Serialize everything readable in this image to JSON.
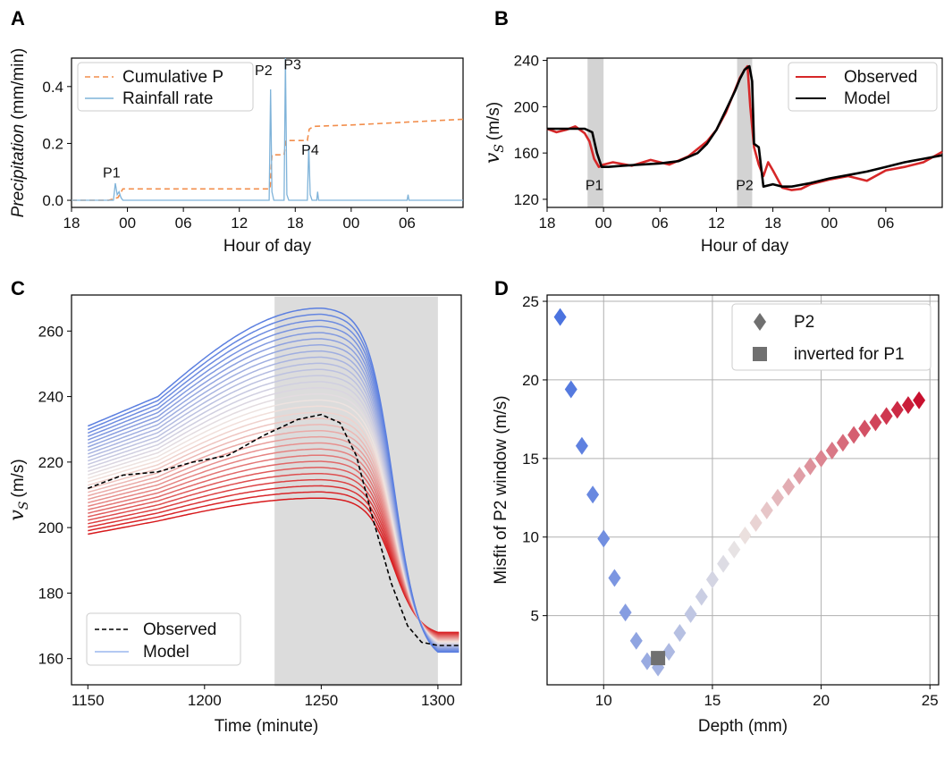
{
  "chart_data": [
    {
      "panel": "A",
      "type": "line",
      "xlabel": "Hour of day",
      "ylabel": "Precipitation (mm/min)",
      "ylabel_italic_part": "Precipitation",
      "ylabel_rest": "(mm/min)",
      "x_ticks": [
        "18",
        "00",
        "06",
        "12",
        "18",
        "00",
        "06"
      ],
      "y_ticks": [
        "0.0",
        "0.2",
        "0.4"
      ],
      "ylim": [
        -0.025,
        0.5
      ],
      "series": [
        {
          "name": "Cumulative P",
          "style": "dashed",
          "color": "#f28e4c",
          "x": [
            18,
            22,
            23,
            23.5,
            24,
            30,
            36,
            39.3,
            39.5,
            40.8,
            41,
            42,
            43.3,
            43.5,
            44,
            48,
            54,
            60
          ],
          "y": [
            0.0,
            0.0,
            0.01,
            0.04,
            0.04,
            0.04,
            0.04,
            0.04,
            0.16,
            0.16,
            0.21,
            0.21,
            0.21,
            0.25,
            0.26,
            0.265,
            0.275,
            0.285
          ]
        },
        {
          "name": "Rainfall rate",
          "style": "solid",
          "color": "#7fb3d9",
          "x": [
            18,
            22.5,
            22.7,
            22.9,
            23.1,
            23.3,
            23.5,
            24,
            36,
            39.2,
            39.35,
            39.5,
            39.7,
            40.8,
            40.95,
            41.1,
            41.3,
            43.3,
            43.45,
            43.6,
            43.8,
            44.3,
            44.4,
            44.5,
            45,
            54,
            54.1,
            54.2,
            60
          ],
          "y": [
            0.0,
            0.0,
            0.06,
            0.02,
            0.03,
            0.01,
            0.0,
            0.0,
            0.0,
            0.0,
            0.39,
            0.03,
            0.0,
            0.0,
            0.5,
            0.02,
            0.0,
            0.0,
            0.19,
            0.02,
            0.0,
            0.0,
            0.03,
            0.0,
            0.0,
            0.0,
            0.02,
            0.0,
            0.0
          ]
        }
      ],
      "annotations": [
        {
          "text": "P1",
          "x": 22.3,
          "y": 0.08
        },
        {
          "text": "P2",
          "x": 38.6,
          "y": 0.44
        },
        {
          "text": "P3",
          "x": 41.7,
          "y": 0.46
        },
        {
          "text": "P4",
          "x": 43.6,
          "y": 0.16
        }
      ],
      "legend": "upper-left"
    },
    {
      "panel": "B",
      "type": "line",
      "xlabel": "Hour of day",
      "ylabel_symbol": "v",
      "ylabel_sub": "S",
      "ylabel_unit": "(m/s)",
      "x_ticks": [
        "18",
        "00",
        "06",
        "12",
        "18",
        "00",
        "06"
      ],
      "y_ticks": [
        "120",
        "160",
        "200",
        "240"
      ],
      "ylim": [
        113,
        242
      ],
      "shaded": [
        {
          "label": "P1",
          "x0": 22.3,
          "x1": 24.0
        },
        {
          "label": "P2",
          "x0": 38.2,
          "x1": 39.8
        }
      ],
      "series": [
        {
          "name": "Observed",
          "color": "#d62728",
          "x": [
            18,
            19,
            20,
            21,
            22,
            22.5,
            23,
            23.5,
            24,
            25,
            27,
            29,
            31,
            33,
            35,
            36,
            37,
            38,
            38.5,
            39,
            39.3,
            39.6,
            40,
            40.5,
            41,
            41.5,
            42,
            43,
            44,
            45,
            46,
            48,
            50,
            52,
            54,
            56,
            58,
            60
          ],
          "y": [
            181,
            178,
            180,
            183,
            177,
            170,
            155,
            148,
            150,
            152,
            149,
            154,
            150,
            157,
            170,
            180,
            195,
            215,
            225,
            232,
            235,
            200,
            165,
            150,
            140,
            152,
            145,
            130,
            128,
            129,
            133,
            137,
            140,
            136,
            145,
            148,
            152,
            161
          ]
        },
        {
          "name": "Model",
          "color": "#000000",
          "x": [
            18,
            20,
            22,
            22.8,
            23.3,
            23.8,
            24.5,
            26,
            28,
            30,
            32,
            34,
            35,
            36,
            37,
            38,
            38.5,
            39,
            39.5,
            39.8,
            40,
            40.5,
            41,
            42,
            43,
            44,
            46,
            48,
            50,
            52,
            54,
            56,
            58,
            60
          ],
          "y": [
            181,
            181,
            181,
            178,
            160,
            148,
            148,
            149,
            150,
            151,
            153,
            160,
            168,
            180,
            197,
            214,
            224,
            232,
            235,
            222,
            168,
            165,
            131,
            133,
            131,
            131,
            134,
            138,
            141,
            144,
            148,
            152,
            155,
            158
          ]
        }
      ],
      "annotations": [
        {
          "text": "P1",
          "x": 23.0,
          "y": 128
        },
        {
          "text": "P2",
          "x": 39.0,
          "y": 128
        }
      ],
      "legend": "upper-right"
    },
    {
      "panel": "C",
      "type": "line",
      "xlabel": "Time (minute)",
      "ylabel_symbol": "v",
      "ylabel_sub": "S",
      "ylabel_unit": "(m/s)",
      "x_ticks": [
        "1150",
        "1200",
        "1250",
        "1300"
      ],
      "y_ticks": [
        "160",
        "180",
        "200",
        "220",
        "240",
        "260"
      ],
      "xlim": [
        1143,
        1310
      ],
      "ylim": [
        152,
        271
      ],
      "shaded": [
        {
          "x0": 1230,
          "x1": 1300
        }
      ],
      "model_family": {
        "count": 32,
        "color_top": "#5b7fe0",
        "color_mid": "#f2e6e0",
        "color_bottom": "#d7191c",
        "top": {
          "start": 231,
          "at1180": 240,
          "peak": 267,
          "end": 162
        },
        "bottom": {
          "start": 198,
          "at1180": 202,
          "peak": 209,
          "end": 168
        }
      },
      "observed": {
        "name": "Observed",
        "style": "dashed",
        "color": "#000000",
        "x": [
          1150,
          1165,
          1180,
          1195,
          1210,
          1225,
          1240,
          1250,
          1258,
          1265,
          1272,
          1280,
          1287,
          1293,
          1300,
          1309
        ],
        "y": [
          212,
          216,
          217,
          220,
          222,
          228,
          233,
          234.5,
          232,
          222,
          203,
          183,
          170,
          165,
          164,
          164
        ]
      },
      "legend": [
        {
          "name": "Observed",
          "style": "dashed"
        },
        {
          "name": "Model",
          "style": "solid"
        }
      ],
      "legend_position": "lower-left"
    },
    {
      "panel": "D",
      "type": "scatter",
      "xlabel": "Depth (mm)",
      "ylabel": "Misfit of P2 window (m/s)",
      "x_ticks": [
        "10",
        "15",
        "20",
        "25"
      ],
      "y_ticks": [
        "5",
        "10",
        "15",
        "20",
        "25"
      ],
      "xlim": [
        7.4,
        25.4
      ],
      "ylim": [
        0.6,
        25.4
      ],
      "grid": true,
      "series": [
        {
          "name": "P2",
          "marker": "diamond",
          "x": [
            8.0,
            8.5,
            9.0,
            9.5,
            10.0,
            10.5,
            11.0,
            11.5,
            12.0,
            12.5,
            13.0,
            13.5,
            14.0,
            14.5,
            15.0,
            15.5,
            16.0,
            16.5,
            17.0,
            17.5,
            18.0,
            18.5,
            19.0,
            19.5,
            20.0,
            20.5,
            21.0,
            21.5,
            22.0,
            22.5,
            23.0,
            23.5,
            24.0,
            24.5
          ],
          "y": [
            24.0,
            19.4,
            15.8,
            12.7,
            9.9,
            7.4,
            5.2,
            3.4,
            2.1,
            1.7,
            2.7,
            3.9,
            5.1,
            6.2,
            7.3,
            8.3,
            9.2,
            10.1,
            10.9,
            11.7,
            12.5,
            13.2,
            13.9,
            14.5,
            15.0,
            15.5,
            16.0,
            16.5,
            16.9,
            17.3,
            17.7,
            18.1,
            18.4,
            18.7
          ]
        },
        {
          "name": "inverted for P1",
          "marker": "square",
          "color": "#707070",
          "x": [
            12.5
          ],
          "y": [
            2.3
          ]
        }
      ],
      "legend": "upper-right"
    }
  ]
}
